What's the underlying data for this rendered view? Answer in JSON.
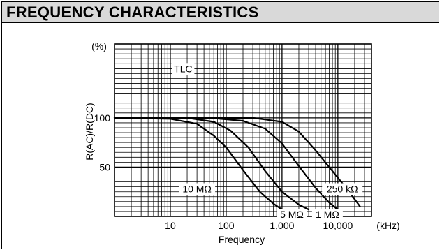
{
  "header": {
    "title": "FREQUENCY CHARACTERISTICS"
  },
  "chart_data": {
    "type": "line",
    "title": "",
    "xlabel": "Frequency",
    "xunit": "(kHz)",
    "ylabel": "R(AC)/R(DC)",
    "yunit": "(%)",
    "xscale": "log",
    "xlim": [
      1,
      40000
    ],
    "ylim": [
      0,
      175
    ],
    "x_tick_labels": [
      "10",
      "100",
      "1,000",
      "10,000"
    ],
    "x_ticks": [
      10,
      100,
      1000,
      10000
    ],
    "y_tick_labels": [
      "100",
      "50"
    ],
    "y_ticks": [
      100,
      50
    ],
    "annotation": "TLC",
    "grid": true,
    "series": [
      {
        "name": "10 MΩ",
        "x": [
          1,
          10,
          30,
          60,
          100,
          200,
          400,
          700,
          1000
        ],
        "y": [
          100,
          99,
          94,
          82,
          70,
          47,
          25,
          13,
          7
        ]
      },
      {
        "name": "5 MΩ",
        "x": [
          1,
          20,
          60,
          120,
          250,
          500,
          1000,
          2000,
          3000
        ],
        "y": [
          100,
          100,
          96,
          87,
          70,
          46,
          25,
          12,
          7
        ]
      },
      {
        "name": "1 MΩ",
        "x": [
          1,
          50,
          200,
          500,
          1000,
          2000,
          4000,
          7000,
          10000
        ],
        "y": [
          100,
          100,
          97,
          89,
          74,
          51,
          29,
          14,
          7
        ]
      },
      {
        "name": "250 kΩ",
        "x": [
          1,
          300,
          1000,
          2000,
          4000,
          8000,
          15000,
          25000
        ],
        "y": [
          100,
          100,
          96,
          86,
          67,
          46,
          27,
          10
        ]
      }
    ]
  }
}
